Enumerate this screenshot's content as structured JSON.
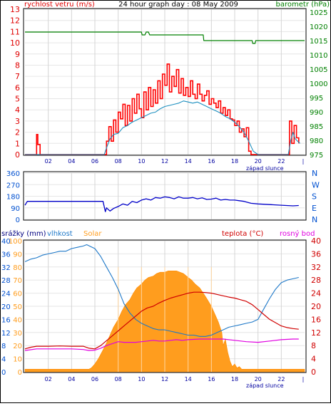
{
  "header": {
    "left_label": "rychlost vetru (m/s)",
    "title": "24 hour graph day : 08 May 2009",
    "right_label": "barometr (hPa)"
  },
  "colors": {
    "wind_gust": "#ff0000",
    "wind_avg": "#1e90c0",
    "pressure": "#008000",
    "direction": "#0000c8",
    "humidity": "#1e78c8",
    "solar": "#ff9d1e",
    "temperature": "#d00000",
    "dewpoint": "#e000e0",
    "axis_left": "#e00000",
    "axis_right_top": "#008000",
    "axis_blue": "#0050d0"
  },
  "x_ticks": [
    "02",
    "04",
    "06",
    "08",
    "10",
    "12",
    "14",
    "16",
    "18",
    "20",
    "22",
    "|"
  ],
  "sunset_label": "západ slunce",
  "chart_data": [
    {
      "type": "line",
      "name": "wind-pressure",
      "x_range": [
        0,
        24
      ],
      "y_left_ticks": [
        0,
        1,
        2,
        3,
        4,
        5,
        6,
        7,
        8,
        9,
        10,
        11,
        12,
        13
      ],
      "y_left_range": [
        0,
        13
      ],
      "y_right_ticks": [
        975,
        980,
        985,
        990,
        995,
        1000,
        1005,
        1010,
        1015,
        1020,
        1025
      ],
      "y_right_range": [
        975,
        1026
      ],
      "series": [
        {
          "key": "gust",
          "axis": "left",
          "x": [
            0,
            0.9,
            1.0,
            1.1,
            1.3,
            6.9,
            7.0,
            7.2,
            7.4,
            7.6,
            7.8,
            8.0,
            8.2,
            8.4,
            8.6,
            8.8,
            9.0,
            9.2,
            9.4,
            9.6,
            9.8,
            10.0,
            10.2,
            10.4,
            10.6,
            10.8,
            11.0,
            11.2,
            11.4,
            11.6,
            11.8,
            12.0,
            12.2,
            12.4,
            12.6,
            12.8,
            13.0,
            13.2,
            13.4,
            13.6,
            13.8,
            14.0,
            14.2,
            14.4,
            14.6,
            14.8,
            15.0,
            15.2,
            15.4,
            15.6,
            15.8,
            16.0,
            16.2,
            16.4,
            16.6,
            16.8,
            17.0,
            17.2,
            17.4,
            17.6,
            17.8,
            18.0,
            18.2,
            18.4,
            18.6,
            18.8,
            19.0,
            19.2,
            19.4,
            20.0,
            22.5,
            22.7,
            22.9,
            23.1,
            23.3,
            23.5
          ],
          "values": [
            0,
            0,
            1.8,
            0.9,
            0,
            0,
            1.2,
            2.5,
            1.2,
            3.1,
            2.0,
            3.8,
            3.2,
            4.5,
            2.6,
            4.4,
            3.0,
            5.0,
            3.7,
            5.4,
            4.1,
            3.3,
            5.6,
            4.0,
            6.0,
            4.3,
            5.8,
            4.6,
            6.6,
            5.0,
            7.2,
            6.2,
            8.1,
            5.6,
            7.0,
            6.1,
            7.6,
            5.5,
            6.8,
            5.3,
            6.0,
            5.2,
            6.6,
            5.4,
            5.0,
            6.3,
            5.4,
            4.8,
            5.3,
            5.7,
            4.5,
            5.0,
            4.6,
            4.2,
            4.8,
            3.7,
            4.2,
            3.5,
            4.0,
            3.2,
            3.1,
            2.6,
            3.0,
            2.0,
            2.3,
            1.6,
            2.4,
            0.3,
            0,
            0,
            0,
            3.0,
            1.0,
            2.6,
            1.5,
            1.0
          ]
        },
        {
          "key": "avg",
          "axis": "left",
          "x": [
            0,
            6.8,
            7.0,
            7.3,
            7.6,
            8.0,
            8.4,
            8.8,
            9.2,
            9.6,
            10.0,
            10.4,
            10.8,
            11.2,
            11.6,
            12.0,
            12.4,
            12.8,
            13.2,
            13.6,
            14.0,
            14.4,
            14.8,
            15.2,
            15.6,
            16.0,
            16.4,
            16.8,
            17.2,
            17.6,
            18.0,
            18.4,
            18.8,
            19.2,
            19.6,
            20.0,
            22.6,
            22.8,
            23.0,
            23.2,
            23.4,
            23.6
          ],
          "values": [
            0,
            0,
            0.6,
            1.4,
            1.8,
            1.9,
            2.4,
            2.6,
            2.9,
            3.1,
            3.3,
            3.5,
            3.7,
            3.8,
            4.1,
            4.3,
            4.4,
            4.5,
            4.6,
            4.8,
            4.7,
            4.6,
            4.7,
            4.5,
            4.3,
            4.1,
            3.9,
            3.7,
            3.4,
            3.2,
            2.9,
            2.5,
            2.0,
            1.2,
            0.3,
            0,
            0,
            1.2,
            2.0,
            1.4,
            1.2,
            1.0
          ]
        },
        {
          "key": "pressure",
          "axis": "right",
          "x": [
            0,
            10.0,
            10.05,
            10.3,
            10.4,
            10.6,
            10.7,
            11.0,
            11.05,
            15.3,
            15.35,
            19.5,
            19.55,
            19.75,
            19.8,
            24
          ],
          "values": [
            1018,
            1018,
            1017,
            1017,
            1018,
            1018,
            1017,
            1017,
            1017,
            1017,
            1015,
            1015,
            1014,
            1014,
            1015,
            1015
          ]
        }
      ]
    },
    {
      "type": "line",
      "name": "wind-direction",
      "x_range": [
        0,
        24
      ],
      "y_ticks": [
        0,
        90,
        180,
        270,
        360
      ],
      "y_range": [
        0,
        360
      ],
      "compass_labels": [
        "N",
        "W",
        "S",
        "E",
        "N"
      ],
      "series": [
        {
          "key": "direction",
          "x": [
            0,
            0.2,
            0.4,
            6.7,
            6.9,
            7.0,
            7.3,
            7.6,
            8.0,
            8.4,
            8.8,
            9.2,
            9.6,
            10.0,
            10.4,
            10.8,
            11.2,
            11.6,
            12.0,
            12.4,
            12.8,
            13.2,
            13.6,
            14.0,
            14.4,
            14.8,
            15.2,
            15.6,
            16.0,
            16.4,
            16.8,
            17.2,
            17.6,
            18.0,
            18.4,
            18.8,
            19.0,
            19.4,
            20.0,
            21.0,
            22.0,
            23.0,
            23.5
          ],
          "values": [
            110,
            140,
            140,
            140,
            60,
            90,
            65,
            85,
            100,
            120,
            110,
            140,
            130,
            150,
            160,
            150,
            170,
            165,
            175,
            170,
            160,
            175,
            165,
            165,
            170,
            160,
            168,
            155,
            158,
            165,
            150,
            155,
            150,
            150,
            145,
            140,
            135,
            125,
            120,
            115,
            110,
            105,
            108
          ]
        }
      ]
    },
    {
      "type": "area",
      "name": "rain-humidity-solar-temperature",
      "labels": {
        "rain": "srážky (mm)",
        "humidity": "vlhkost",
        "solar": "Solar",
        "temperature": "teplota (°C)",
        "dewpoint": "rosný bod"
      },
      "x_range": [
        0,
        24
      ],
      "y_left_pct_ticks": [
        0,
        10,
        20,
        30,
        40,
        50,
        60,
        70,
        80,
        90,
        100
      ],
      "y_left_rain_ticks": [
        0,
        4,
        8,
        12,
        16,
        20,
        24,
        28,
        32,
        36,
        40
      ],
      "y_left_solar_ticks": [
        0,
        10,
        20,
        30,
        40,
        50,
        60,
        70,
        80,
        90,
        100
      ],
      "y_right_ticks": [
        0,
        4,
        8,
        12,
        16,
        20,
        24,
        28,
        32,
        36,
        40
      ],
      "series": [
        {
          "key": "humidity",
          "axis": "pct",
          "x": [
            0,
            0.5,
            1.0,
            1.5,
            2.0,
            2.5,
            3.0,
            3.5,
            4.0,
            4.5,
            5.0,
            5.3,
            6.0,
            6.5,
            7.0,
            7.5,
            8.0,
            8.5,
            9.0,
            9.5,
            10.0,
            10.5,
            11.0,
            11.5,
            12.0,
            12.5,
            13.0,
            13.5,
            14.0,
            14.5,
            15.0,
            15.5,
            16.0,
            16.5,
            17.0,
            17.5,
            18.0,
            18.5,
            19.0,
            19.5,
            20.0,
            20.5,
            21.0,
            21.5,
            22.0,
            22.5,
            23.0,
            23.5
          ],
          "values": [
            84,
            86,
            87,
            89,
            90,
            91,
            92,
            92,
            94,
            95,
            96,
            97,
            94,
            88,
            80,
            72,
            63,
            52,
            45,
            40,
            37,
            35,
            33,
            32,
            32,
            31,
            30,
            29,
            28,
            28,
            27,
            27,
            28,
            30,
            32,
            34,
            35,
            36,
            37,
            38,
            40,
            48,
            56,
            63,
            68,
            70,
            71,
            72
          ]
        },
        {
          "key": "solar",
          "axis": "pct",
          "x": [
            0,
            5.5,
            5.7,
            6.0,
            6.3,
            6.6,
            7.0,
            7.3,
            7.6,
            8.0,
            8.3,
            8.6,
            9.0,
            9.3,
            9.6,
            10.0,
            10.3,
            10.6,
            11.0,
            11.3,
            11.6,
            12.0,
            12.3,
            12.6,
            13.0,
            13.3,
            13.6,
            14.0,
            14.3,
            14.6,
            15.0,
            15.3,
            15.6,
            16.0,
            16.3,
            16.6,
            16.9,
            17.0,
            17.2,
            17.4,
            17.6,
            17.8,
            18.0,
            18.2,
            18.4,
            18.6,
            18.8,
            19.0,
            24
          ],
          "values": [
            2,
            2,
            3,
            6,
            10,
            15,
            22,
            28,
            34,
            40,
            46,
            51,
            55,
            60,
            64,
            67,
            70,
            72,
            73,
            75,
            76,
            76,
            77,
            77,
            77,
            76,
            75,
            72,
            70,
            67,
            64,
            60,
            56,
            50,
            44,
            38,
            30,
            20,
            25,
            15,
            8,
            4,
            6,
            3,
            4,
            2,
            2,
            2,
            2
          ]
        },
        {
          "key": "temperature",
          "axis": "temp",
          "x": [
            0,
            0.5,
            1.0,
            2.0,
            3.0,
            4.0,
            5.0,
            5.5,
            6.0,
            6.5,
            7.0,
            7.5,
            8.0,
            8.5,
            9.0,
            9.5,
            10.0,
            10.5,
            11.0,
            11.5,
            12.0,
            12.5,
            13.0,
            13.5,
            14.0,
            14.5,
            15.0,
            15.5,
            16.0,
            16.5,
            17.0,
            17.5,
            18.0,
            18.5,
            19.0,
            19.5,
            20.0,
            20.5,
            21.0,
            21.5,
            22.0,
            22.5,
            23.0,
            23.5
          ],
          "values": [
            7,
            7.5,
            7.8,
            7.8,
            7.9,
            7.8,
            7.8,
            7.2,
            7.0,
            8.0,
            9.5,
            11.0,
            12.5,
            14.0,
            15.5,
            17.0,
            18.5,
            19.5,
            20.0,
            21.0,
            21.8,
            22.5,
            23.0,
            23.5,
            24.0,
            24.3,
            24.3,
            24.2,
            24.0,
            23.6,
            23.2,
            22.8,
            22.5,
            22.0,
            21.5,
            20.5,
            19.0,
            17.5,
            16.0,
            15.0,
            14.0,
            13.5,
            13.2,
            13.0
          ]
        },
        {
          "key": "dewpoint",
          "axis": "temp",
          "x": [
            0,
            1.0,
            2.0,
            3.0,
            4.0,
            5.0,
            5.5,
            6.0,
            6.5,
            7.0,
            7.5,
            8.0,
            8.5,
            9.0,
            9.5,
            10.0,
            10.5,
            11.0,
            11.5,
            12.0,
            12.5,
            13.0,
            13.5,
            14.0,
            15.0,
            16.0,
            17.0,
            18.0,
            19.0,
            20.0,
            21.0,
            22.0,
            23.0,
            23.5
          ],
          "values": [
            6.5,
            7.0,
            7.0,
            7.0,
            7.0,
            6.8,
            6.5,
            6.6,
            7.2,
            8.0,
            8.6,
            9.2,
            9.0,
            9.0,
            9.0,
            9.2,
            9.4,
            9.6,
            9.4,
            9.4,
            9.6,
            9.8,
            9.6,
            9.8,
            10.0,
            10.0,
            10.0,
            9.6,
            9.2,
            9.0,
            9.4,
            9.8,
            10.0,
            10.0
          ]
        }
      ]
    }
  ]
}
